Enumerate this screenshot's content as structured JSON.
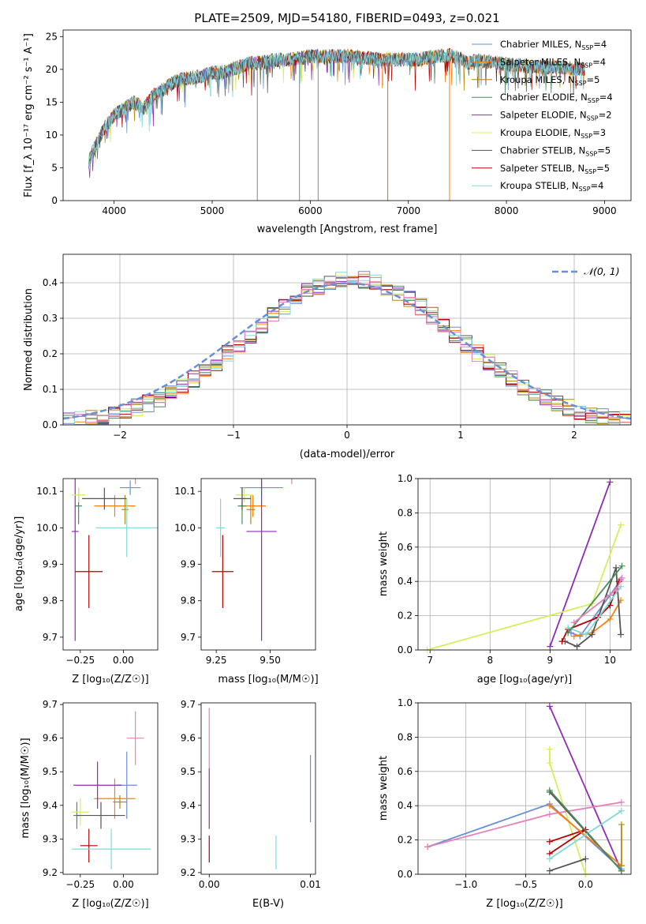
{
  "title": "PLATE=2509, MJD=54180, FIBERID=0493, z=0.021",
  "colors": {
    "Chabrier MILES": "#6a8fd8",
    "Salpeter MILES": "#ff7f0e",
    "Kroupa MILES": "#b8860b",
    "Chabrier ELODIE": "#4a8a5a",
    "Salpeter ELODIE": "#8e2bb5",
    "Kroupa ELODIE": "#d4ef5a",
    "Chabrier STELIB": "#555555",
    "Salpeter STELIB": "#b40000",
    "Kroupa STELIB": "#7fd8d8",
    "pink": "#e87fb8"
  },
  "chart_data": [
    {
      "type": "line",
      "title": "PLATE=2509, MJD=54180, FIBERID=0493, z=0.021",
      "xlabel": "wavelength [Angstrom, rest frame]",
      "ylabel": "Flux [f_λ 10⁻¹⁷ erg cm⁻² s⁻¹ A⁻¹]",
      "xlim": [
        3480,
        9270
      ],
      "ylim": [
        0,
        26
      ],
      "xticks": [
        "4000",
        "5000",
        "6000",
        "7000",
        "8000",
        "9000"
      ],
      "yticks": [
        "0",
        "5",
        "10",
        "15",
        "20",
        "25"
      ],
      "legend_position": "upper-right",
      "legend": [
        {
          "name": "Chabrier MILES",
          "sub": "SSP",
          "n": "4"
        },
        {
          "name": "Salpeter MILES",
          "sub": "SSP",
          "n": "4"
        },
        {
          "name": "Kroupa MILES",
          "sub": "SSP",
          "n": "5"
        },
        {
          "name": "Chabrier ELODIE",
          "sub": "SSP",
          "n": "4"
        },
        {
          "name": "Salpeter ELODIE",
          "sub": "SSP",
          "n": "2"
        },
        {
          "name": "Kroupa ELODIE",
          "sub": "SSP",
          "n": "3"
        },
        {
          "name": "Chabrier STELIB",
          "sub": "SSP",
          "n": "5"
        },
        {
          "name": "Salpeter STELIB",
          "sub": "SSP",
          "n": "5"
        },
        {
          "name": "Kroupa STELIB",
          "sub": "SSP",
          "n": "4"
        }
      ],
      "spectrum_envelope": {
        "x": [
          3740,
          3800,
          3900,
          4000,
          4100,
          4200,
          4300,
          4400,
          4500,
          4600,
          4700,
          4800,
          4900,
          5000,
          5100,
          5200,
          5300,
          5400,
          5500,
          5600,
          5700,
          5800,
          5900,
          6000,
          6100,
          6200,
          6300,
          6400,
          6500,
          6600,
          6700,
          6800,
          6900,
          7000,
          7100,
          7200,
          7300,
          7400,
          7500,
          7600,
          7700,
          7800,
          7900,
          8000,
          8200,
          8400,
          8600,
          8800
        ],
        "y": [
          6,
          8,
          11,
          13,
          14,
          15,
          14,
          16,
          17,
          18,
          18.5,
          18.7,
          19,
          19.5,
          19.5,
          20,
          20.5,
          21,
          21,
          21.3,
          21.5,
          21.5,
          21.7,
          22,
          22,
          22,
          22,
          22,
          21.8,
          21.7,
          21.5,
          21.5,
          21.5,
          21.5,
          21.5,
          21.8,
          22,
          22.2,
          21.8,
          21,
          21.3,
          21.2,
          21,
          20.8,
          20.5,
          20.3,
          20.3,
          20
        ]
      },
      "absorption_lines": [
        5460,
        5890,
        6080,
        6790,
        7420
      ]
    },
    {
      "type": "histogram",
      "xlabel": "(data-model)/error",
      "ylabel": "Normed distribution",
      "xlim": [
        -2.5,
        2.5
      ],
      "ylim": [
        0,
        0.48
      ],
      "xticks": [
        "−2",
        "−1",
        "0",
        "1",
        "2"
      ],
      "yticks": [
        "0.0",
        "0.1",
        "0.2",
        "0.3",
        "0.4"
      ],
      "legend": [
        "𝒩(0, 1)"
      ],
      "legend_position": "upper-right",
      "bin_width": 0.1,
      "grid": true
    },
    {
      "type": "errorbar",
      "xlabel": "Z [log₁₀(Z/Z☉)]",
      "ylabel": "age [log₁₀(age/yr)]",
      "xlim": [
        -0.35,
        0.2
      ],
      "ylim": [
        9.665,
        10.135
      ],
      "xticks": [
        "−0.25",
        "0.00"
      ],
      "yticks": [
        "9.7",
        "9.8",
        "9.9",
        "10.0",
        "10.1"
      ],
      "points": [
        {
          "series": "Chabrier MILES",
          "x": 0.04,
          "y": 10.11,
          "xerr": 0.06,
          "yerr": 0.02
        },
        {
          "series": "Salpeter MILES",
          "x": -0.05,
          "y": 10.06,
          "xerr": 0.12,
          "yerr": 0.03
        },
        {
          "series": "Kroupa MILES",
          "x": 0.01,
          "y": 10.05,
          "xerr": 0.02,
          "yerr": 0.04
        },
        {
          "series": "Chabrier ELODIE",
          "x": -0.26,
          "y": 10.06,
          "xerr": 0.02,
          "yerr": 0.05
        },
        {
          "series": "Salpeter ELODIE",
          "x": -0.28,
          "y": 9.99,
          "xerr": 0.02,
          "yerr": 0.3
        },
        {
          "series": "Kroupa ELODIE",
          "x": -0.26,
          "y": 10.09,
          "xerr": 0.04,
          "yerr": 0.02
        },
        {
          "series": "Chabrier STELIB",
          "x": -0.11,
          "y": 10.08,
          "xerr": 0.13,
          "yerr": 0.03
        },
        {
          "series": "Salpeter STELIB",
          "x": -0.2,
          "y": 9.88,
          "xerr": 0.08,
          "yerr": 0.1
        },
        {
          "series": "Kroupa STELIB",
          "x": 0.02,
          "y": 10.0,
          "xerr": 0.18,
          "yerr": 0.08
        },
        {
          "series": "pink",
          "x": 0.07,
          "y": 10.15,
          "xerr": 0.05,
          "yerr": 0.03
        }
      ]
    },
    {
      "type": "errorbar",
      "xlabel": "mass [log₁₀(M/M☉)]",
      "ylabel": "",
      "xlim": [
        9.18,
        9.71
      ],
      "ylim": [
        9.665,
        10.135
      ],
      "xticks": [
        "9.25",
        "9.50"
      ],
      "yticks": [
        "9.7",
        "9.8",
        "9.9",
        "10.0",
        "10.1"
      ],
      "points": [
        {
          "series": "Chabrier MILES",
          "x": 9.46,
          "y": 10.11,
          "xerr": 0.1,
          "yerr": 0.02
        },
        {
          "series": "Salpeter MILES",
          "x": 9.42,
          "y": 10.06,
          "xerr": 0.06,
          "yerr": 0.03
        },
        {
          "series": "Kroupa MILES",
          "x": 9.41,
          "y": 10.05,
          "xerr": 0.02,
          "yerr": 0.04
        },
        {
          "series": "Chabrier ELODIE",
          "x": 9.37,
          "y": 10.06,
          "xerr": 0.02,
          "yerr": 0.05
        },
        {
          "series": "Salpeter ELODIE",
          "x": 9.46,
          "y": 9.99,
          "xerr": 0.07,
          "yerr": 0.3
        },
        {
          "series": "Kroupa ELODIE",
          "x": 9.38,
          "y": 10.09,
          "xerr": 0.04,
          "yerr": 0.02
        },
        {
          "series": "Chabrier STELIB",
          "x": 9.37,
          "y": 10.08,
          "xerr": 0.04,
          "yerr": 0.03
        },
        {
          "series": "Salpeter STELIB",
          "x": 9.28,
          "y": 9.88,
          "xerr": 0.05,
          "yerr": 0.1
        },
        {
          "series": "Kroupa STELIB",
          "x": 9.27,
          "y": 10.0,
          "xerr": 0.02,
          "yerr": 0.08
        },
        {
          "series": "pink",
          "x": 9.6,
          "y": 10.15,
          "xerr": 0.05,
          "yerr": 0.03
        }
      ]
    },
    {
      "type": "line",
      "xlabel": "age [log₁₀(age/yr)]",
      "ylabel": "mass weight",
      "xlim": [
        6.8,
        10.35
      ],
      "ylim": [
        0,
        1
      ],
      "xticks": [
        "7",
        "8",
        "9",
        "10"
      ],
      "yticks": [
        "0.0",
        "0.2",
        "0.4",
        "0.6",
        "0.8",
        "1.0"
      ],
      "grid": true,
      "series": [
        {
          "name": "Salpeter ELODIE",
          "x": [
            9.0,
            10.0
          ],
          "y": [
            0.02,
            0.98
          ]
        },
        {
          "name": "Kroupa ELODIE",
          "x": [
            6.95,
            9.7,
            10.18
          ],
          "y": [
            0.0,
            0.27,
            0.73
          ]
        },
        {
          "name": "Chabrier MILES",
          "x": [
            9.35,
            9.5,
            10.0,
            10.18
          ],
          "y": [
            0.1,
            0.08,
            0.32,
            0.41
          ]
        },
        {
          "name": "Salpeter MILES",
          "x": [
            9.4,
            9.7,
            10.0,
            10.18
          ],
          "y": [
            0.08,
            0.1,
            0.18,
            0.29
          ]
        },
        {
          "name": "Chabrier STELIB",
          "x": [
            9.25,
            9.45,
            9.7,
            10.1,
            10.18
          ],
          "y": [
            0.05,
            0.02,
            0.09,
            0.48,
            0.09
          ]
        },
        {
          "name": "Salpeter STELIB",
          "x": [
            9.2,
            9.3,
            9.8,
            10.0,
            10.15
          ],
          "y": [
            0.05,
            0.12,
            0.19,
            0.26,
            0.4
          ]
        },
        {
          "name": "Kroupa STELIB",
          "x": [
            9.3,
            9.6,
            10.18
          ],
          "y": [
            0.13,
            0.09,
            0.37
          ]
        },
        {
          "name": "Chabrier ELODIE",
          "x": [
            9.3,
            10.2
          ],
          "y": [
            0.1,
            0.49
          ]
        },
        {
          "name": "pink",
          "x": [
            9.4,
            10.1,
            10.2
          ],
          "y": [
            0.16,
            0.35,
            0.42
          ]
        }
      ]
    },
    {
      "type": "errorbar",
      "xlabel": "Z [log₁₀(Z/Z☉)]",
      "ylabel": "mass [log₁₀(M/M☉)]",
      "xlim": [
        -0.35,
        0.2
      ],
      "ylim": [
        9.195,
        9.705
      ],
      "xticks": [
        "−0.25",
        "0.00"
      ],
      "yticks": [
        "9.2",
        "9.3",
        "9.4",
        "9.5",
        "9.6",
        "9.7"
      ],
      "points": [
        {
          "series": "Chabrier MILES",
          "x": 0.02,
          "y": 9.46,
          "xerr": 0.06,
          "yerr": 0.1
        },
        {
          "series": "Salpeter MILES",
          "x": -0.05,
          "y": 9.42,
          "xerr": 0.12,
          "yerr": 0.06
        },
        {
          "series": "Kroupa MILES",
          "x": -0.02,
          "y": 9.41,
          "xerr": 0.04,
          "yerr": 0.02
        },
        {
          "series": "Chabrier ELODIE",
          "x": -0.27,
          "y": 9.37,
          "xerr": 0.02,
          "yerr": 0.04
        },
        {
          "series": "Salpeter ELODIE",
          "x": -0.15,
          "y": 9.46,
          "xerr": 0.14,
          "yerr": 0.07
        },
        {
          "series": "Kroupa ELODIE",
          "x": -0.25,
          "y": 9.38,
          "xerr": 0.05,
          "yerr": 0.04
        },
        {
          "series": "Chabrier STELIB",
          "x": -0.13,
          "y": 9.37,
          "xerr": 0.14,
          "yerr": 0.04
        },
        {
          "series": "Salpeter STELIB",
          "x": -0.2,
          "y": 9.28,
          "xerr": 0.05,
          "yerr": 0.05
        },
        {
          "series": "Kroupa STELIB",
          "x": -0.07,
          "y": 9.27,
          "xerr": 0.23,
          "yerr": 0.06
        },
        {
          "series": "pink",
          "x": 0.07,
          "y": 9.6,
          "xerr": 0.05,
          "yerr": 0.08
        }
      ]
    },
    {
      "type": "errorbar",
      "xlabel": "E(B-V)",
      "ylabel": "",
      "xlim": [
        -0.0008,
        0.0105
      ],
      "ylim": [
        9.195,
        9.705
      ],
      "xticks": [
        "0.00",
        "0.01"
      ],
      "yticks": [
        "9.2",
        "9.3",
        "9.4",
        "9.5",
        "9.6",
        "9.7"
      ],
      "points": [
        {
          "series": "Chabrier MILES",
          "x": 0.01,
          "y": 9.45,
          "xerr": 0,
          "yerr": 0.1
        },
        {
          "series": "Salpeter ELODIE",
          "x": 0.0,
          "y": 9.42,
          "xerr": 0,
          "yerr": 0.09
        },
        {
          "series": "Salpeter STELIB",
          "x": 0.0,
          "y": 9.27,
          "xerr": 0,
          "yerr": 0.04
        },
        {
          "series": "Kroupa STELIB",
          "x": 0.0066,
          "y": 9.26,
          "xerr": 0,
          "yerr": 0.05
        },
        {
          "series": "pink",
          "x": 0.0,
          "y": 9.6,
          "xerr": 0,
          "yerr": 0.09
        }
      ]
    },
    {
      "type": "line",
      "xlabel": "Z [log₁₀(Z/Z☉)]",
      "ylabel": "mass weight",
      "xlim": [
        -1.4,
        0.38
      ],
      "ylim": [
        0,
        1
      ],
      "xticks": [
        "−1.0",
        "−0.5",
        "0.0"
      ],
      "yticks": [
        "0.0",
        "0.2",
        "0.4",
        "0.6",
        "0.8",
        "1.0"
      ],
      "grid": true,
      "series": [
        {
          "name": "Salpeter ELODIE",
          "x": [
            -0.3,
            0.3
          ],
          "y": [
            0.98,
            0.02
          ]
        },
        {
          "name": "Kroupa ELODIE",
          "x": [
            -0.3,
            -0.3,
            0.0
          ],
          "y": [
            0.73,
            0.65,
            0.0
          ]
        },
        {
          "name": "Chabrier MILES",
          "x": [
            -1.32,
            -0.3,
            0.3
          ],
          "y": [
            0.16,
            0.41,
            0.03
          ]
        },
        {
          "name": "pink",
          "x": [
            -1.32,
            -0.3,
            0.3
          ],
          "y": [
            0.16,
            0.35,
            0.42
          ]
        },
        {
          "name": "Chabrier STELIB",
          "x": [
            -0.3,
            0.3
          ],
          "y": [
            0.48,
            0.02
          ]
        },
        {
          "name": "Chabrier STELIB",
          "x": [
            -0.3,
            0.0
          ],
          "y": [
            0.02,
            0.09
          ]
        },
        {
          "name": "Salpeter STELIB",
          "x": [
            -0.3,
            0.0,
            -0.3
          ],
          "y": [
            0.19,
            0.26,
            0.12
          ]
        },
        {
          "name": "Salpeter MILES",
          "x": [
            -0.3,
            0.3
          ],
          "y": [
            0.4,
            0.05
          ]
        },
        {
          "name": "Kroupa MILES",
          "x": [
            0.3,
            0.3
          ],
          "y": [
            0.29,
            0.05
          ]
        },
        {
          "name": "Kroupa STELIB",
          "x": [
            -0.3,
            0.3
          ],
          "y": [
            0.09,
            0.37
          ]
        },
        {
          "name": "Chabrier ELODIE",
          "x": [
            -0.3,
            0.3
          ],
          "y": [
            0.49,
            0.02
          ]
        }
      ]
    }
  ]
}
